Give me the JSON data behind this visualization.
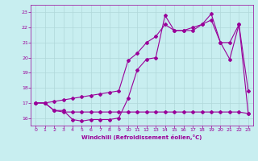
{
  "xlabel": "Windchill (Refroidissement éolien,°C)",
  "background_color": "#c8eef0",
  "grid_color": "#b0d8da",
  "line_color": "#990099",
  "xlim": [
    -0.5,
    23.5
  ],
  "ylim": [
    15.5,
    23.5
  ],
  "yticks": [
    16,
    17,
    18,
    19,
    20,
    21,
    22,
    23
  ],
  "xticks": [
    0,
    1,
    2,
    3,
    4,
    5,
    6,
    7,
    8,
    9,
    10,
    11,
    12,
    13,
    14,
    15,
    16,
    17,
    18,
    19,
    20,
    21,
    22,
    23
  ],
  "series1_x": [
    0,
    1,
    2,
    3,
    4,
    5,
    6,
    7,
    8,
    9,
    10,
    11,
    12,
    13,
    14,
    15,
    16,
    17,
    18,
    19,
    20,
    21,
    22,
    23
  ],
  "series1_y": [
    17.0,
    17.0,
    16.5,
    16.5,
    15.9,
    15.8,
    15.9,
    15.9,
    15.9,
    16.0,
    17.3,
    19.2,
    19.9,
    20.0,
    22.8,
    21.8,
    21.8,
    21.8,
    22.2,
    22.9,
    21.0,
    19.9,
    22.2,
    17.8
  ],
  "series2_x": [
    0,
    1,
    2,
    3,
    4,
    5,
    6,
    7,
    8,
    9,
    10,
    11,
    12,
    13,
    14,
    15,
    16,
    17,
    18,
    19,
    20,
    21,
    22,
    23
  ],
  "series2_y": [
    17.0,
    17.0,
    16.5,
    16.4,
    16.4,
    16.4,
    16.4,
    16.4,
    16.4,
    16.4,
    16.4,
    16.4,
    16.4,
    16.4,
    16.4,
    16.4,
    16.4,
    16.4,
    16.4,
    16.4,
    16.4,
    16.4,
    16.4,
    16.3
  ],
  "series3_x": [
    0,
    1,
    2,
    3,
    4,
    5,
    6,
    7,
    8,
    9,
    10,
    11,
    12,
    13,
    14,
    15,
    16,
    17,
    18,
    19,
    20,
    21,
    22,
    23
  ],
  "series3_y": [
    17.0,
    17.0,
    17.1,
    17.2,
    17.3,
    17.4,
    17.5,
    17.6,
    17.7,
    17.8,
    19.8,
    20.3,
    21.0,
    21.4,
    22.2,
    21.8,
    21.8,
    22.0,
    22.2,
    22.5,
    21.0,
    21.0,
    22.2,
    16.3
  ]
}
